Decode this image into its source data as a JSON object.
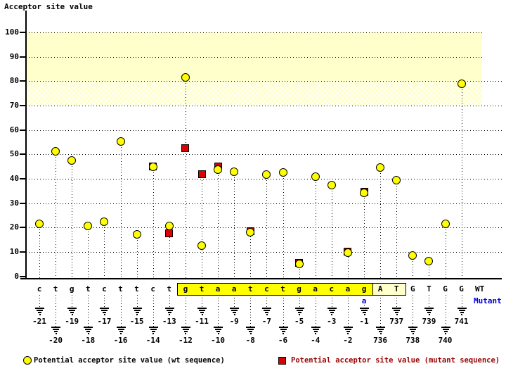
{
  "title": "Acceptor site value",
  "labels": {
    "wt": "WT",
    "mutant": "Mutant"
  },
  "legend": {
    "wt": "Potential acceptor site value (wt sequence)",
    "mutant": "Potential acceptor site value (mutant sequence)"
  },
  "colors": {
    "wt_marker": "#ffff00",
    "mutant_marker": "#dd0000",
    "mutant_text": "#990000",
    "blue": "#0000dd",
    "band": "#ffffcc",
    "highlight_box": "#ffff00",
    "exon_box": "#ffffcc"
  },
  "chart_data": {
    "type": "scatter",
    "title": "Acceptor site value",
    "ylabel": "Acceptor site value",
    "ylim": [
      0,
      105
    ],
    "y_ticks": [
      0,
      10,
      20,
      30,
      40,
      50,
      60,
      70,
      80,
      90,
      100
    ],
    "grid": "dotted horizontal",
    "legend_position": "bottom",
    "positions": [
      "-21",
      "-20",
      "-19",
      "-18",
      "-17",
      "-16",
      "-15",
      "-14",
      "-13",
      "-12",
      "-11",
      "-10",
      "-9",
      "-8",
      "-7",
      "-6",
      "-5",
      "-4",
      "-3",
      "-2",
      "-1",
      "736",
      "737",
      "738",
      "739",
      "740",
      "741"
    ],
    "sequence": [
      "c",
      "t",
      "g",
      "t",
      "c",
      "t",
      "t",
      "c",
      "t",
      "g",
      "t",
      "a",
      "a",
      "t",
      "c",
      "t",
      "g",
      "a",
      "c",
      "a",
      "g",
      "A",
      "T",
      "G",
      "T",
      "G",
      "G"
    ],
    "mutation": {
      "index": 20,
      "position": "-1",
      "base": "a"
    },
    "highlight_boxes": [
      {
        "start_index": 9,
        "end_index": 20,
        "kind": "intron-highlight"
      },
      {
        "start_index": 21,
        "end_index": 22,
        "kind": "exon-highlight"
      }
    ],
    "threshold_bands": [
      {
        "from": 80,
        "to": 100,
        "style": "solid"
      },
      {
        "from": 70,
        "to": 80,
        "style": "hatch"
      }
    ],
    "series": [
      {
        "name": "Potential acceptor site value (wt sequence)",
        "marker": "circle",
        "color": "#ffff00",
        "values": [
          21.5,
          51.3,
          47.4,
          20.7,
          22.5,
          55.3,
          17.3,
          45.0,
          20.8,
          81.5,
          12.5,
          43.8,
          42.9,
          18.1,
          41.9,
          42.6,
          5.0,
          40.8,
          37.5,
          9.8,
          34.2,
          44.7,
          39.5,
          8.5,
          6.2,
          21.5,
          79.0
        ]
      },
      {
        "name": "Potential acceptor site value (mutant sequence)",
        "marker": "square",
        "color": "#dd0000",
        "values": [
          null,
          null,
          null,
          null,
          null,
          null,
          null,
          45.0,
          17.6,
          52.5,
          41.9,
          45.0,
          null,
          18.6,
          null,
          null,
          5.5,
          null,
          null,
          10.2,
          34.6,
          null,
          null,
          null,
          null,
          null,
          null
        ]
      }
    ]
  }
}
